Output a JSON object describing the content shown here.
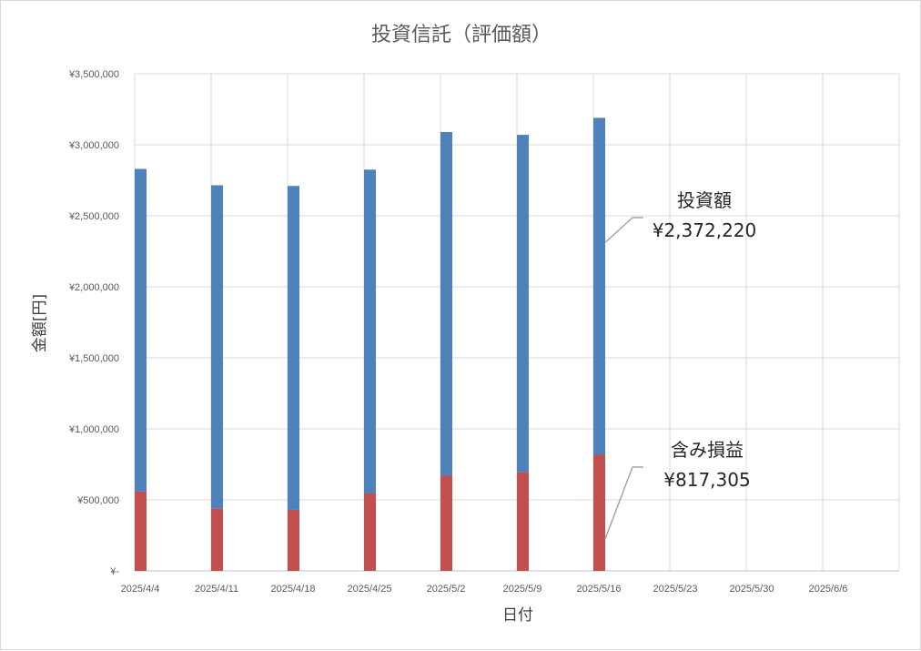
{
  "chart_data": {
    "type": "bar",
    "stacked": true,
    "title": "投資信託（評価額）",
    "xlabel": "日付",
    "ylabel": "金額[円]",
    "ylim": [
      0,
      3500000
    ],
    "yticks": [
      {
        "value": 0,
        "label": "¥-"
      },
      {
        "value": 500000,
        "label": "¥500,000"
      },
      {
        "value": 1000000,
        "label": "¥1,000,000"
      },
      {
        "value": 1500000,
        "label": "¥1,500,000"
      },
      {
        "value": 2000000,
        "label": "¥2,000,000"
      },
      {
        "value": 2500000,
        "label": "¥2,500,000"
      },
      {
        "value": 3000000,
        "label": "¥3,000,000"
      },
      {
        "value": 3500000,
        "label": "¥3,500,000"
      }
    ],
    "categories": [
      "2025/4/4",
      "2025/4/11",
      "2025/4/18",
      "2025/4/25",
      "2025/5/2",
      "2025/5/9",
      "2025/5/16",
      "2025/5/23",
      "2025/5/30",
      "2025/6/6"
    ],
    "series": [
      {
        "name": "含み損益",
        "color": "#c0504d",
        "values": [
          560000,
          440000,
          430000,
          545000,
          670000,
          695000,
          817305,
          null,
          null,
          null
        ]
      },
      {
        "name": "投資額",
        "color": "#4f81bd",
        "values": [
          2270000,
          2275000,
          2280000,
          2280000,
          2420000,
          2375000,
          2372220,
          null,
          null,
          null
        ]
      }
    ],
    "grid": true,
    "annotations": [
      {
        "series": "投資額",
        "label": "投資額",
        "value_label": "¥2,372,220"
      },
      {
        "series": "含み損益",
        "label": "含み損益",
        "value_label": "¥817,305"
      }
    ]
  }
}
